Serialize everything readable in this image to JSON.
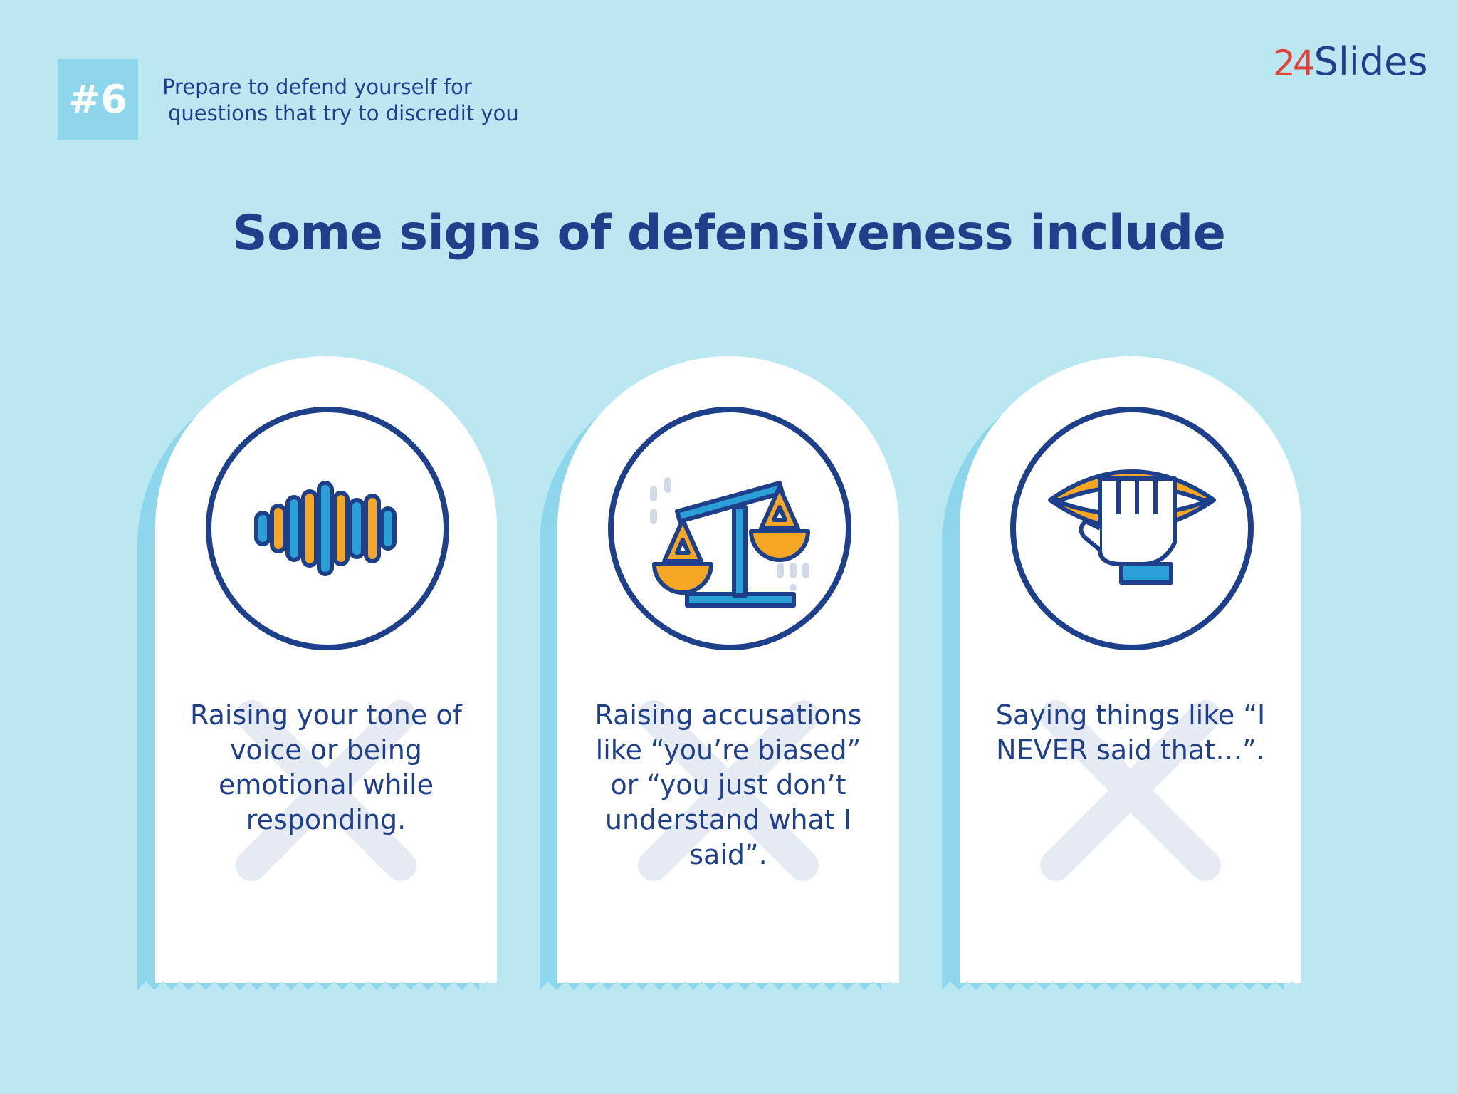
{
  "header": {
    "badge": "#6",
    "subtitle_line1": "Prepare to defend yourself for",
    "subtitle_line2": "questions that try to discredit you"
  },
  "logo": {
    "number": "24",
    "word": "Slides"
  },
  "heading": "Some signs of defensiveness include",
  "cards": [
    {
      "icon": "sound-wave-icon",
      "text": "Raising your tone of voice or being emotional while responding."
    },
    {
      "icon": "scale-icon",
      "text": "Raising accusations like “you’re biased” or “you just don’t understand what I said”."
    },
    {
      "icon": "hand-over-mouth-icon",
      "text": "Saying things like “I NEVER said that…”."
    }
  ],
  "colors": {
    "background": "#b9e8f3",
    "navy": "#1e3f8a",
    "light_blue": "#8dd6ec",
    "accent_blue": "#2a9fd8",
    "orange": "#f5a623",
    "logo_red": "#e0433f"
  }
}
